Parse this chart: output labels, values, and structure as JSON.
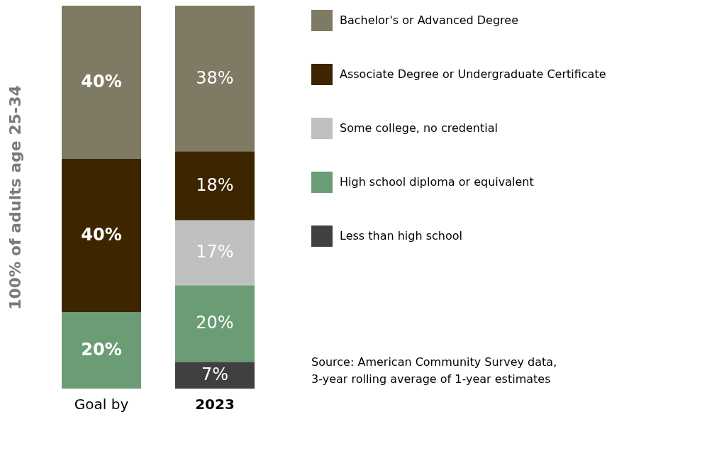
{
  "chart_data": {
    "type": "bar",
    "stacked": true,
    "ylabel": "100% of adults age 25-34",
    "tick_labels": "x",
    "legend": "right",
    "grid": false,
    "categories": [
      "Goal by",
      "2023"
    ],
    "series": [
      {
        "name": "Less than high school",
        "color": "#404040",
        "values": [
          null,
          7
        ],
        "value_labels": [
          null,
          "7%"
        ]
      },
      {
        "name": "High school diploma or equivalent",
        "color": "#6a9c75",
        "values": [
          20,
          20
        ],
        "value_labels": [
          "20%",
          "20%"
        ]
      },
      {
        "name": "Some college, no credential",
        "color": "#c0c0c0",
        "values": [
          null,
          17
        ],
        "value_labels": [
          null,
          "17%"
        ]
      },
      {
        "name": "Associate Degree or Undergraduate Certificate",
        "color": "#3d2500",
        "values": [
          40,
          18
        ],
        "value_labels": [
          "40%",
          "18%"
        ]
      },
      {
        "name": "Bachelor's or Advanced Degree",
        "color": "#7f7a63",
        "values": [
          40,
          38
        ],
        "value_labels": [
          "40%",
          "38%"
        ]
      }
    ],
    "annotations": [
      "Source: American Community Survey data, 3-year rolling average of 1-year estimates"
    ]
  }
}
